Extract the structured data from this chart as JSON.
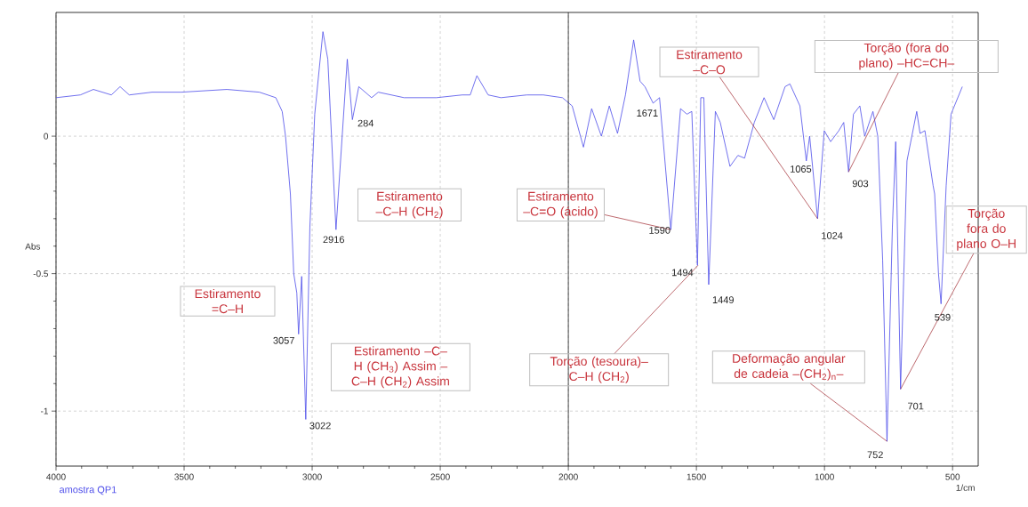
{
  "chart_data": {
    "type": "line",
    "xlabel": "1/cm",
    "ylabel": "Abs",
    "xlim": [
      4000,
      400
    ],
    "ylim": [
      -1.2,
      0.45
    ],
    "xticks": [
      4000,
      3500,
      3000,
      2500,
      2000,
      1500,
      1000,
      500
    ],
    "yticks": [
      0,
      -0.5,
      -1
    ],
    "grid": true,
    "ref_lines": [
      {
        "axis": "x",
        "value": 2000,
        "color": "#000000",
        "line_style": "solid"
      }
    ],
    "x": [
      4000,
      3905,
      3854,
      3784,
      3750,
      3714,
      3625,
      3511,
      3333,
      3206,
      3142,
      3117,
      3104,
      3085,
      3072,
      3060,
      3053,
      3041,
      3025,
      3009,
      2990,
      2958,
      2939,
      2907,
      2863,
      2843,
      2818,
      2768,
      2742,
      2641,
      2515,
      2414,
      2383,
      2357,
      2313,
      2263,
      2162,
      2098,
      2023,
      1985,
      1941,
      1909,
      1871,
      1840,
      1808,
      1777,
      1745,
      1720,
      1701,
      1669,
      1644,
      1600,
      1562,
      1537,
      1518,
      1496,
      1483,
      1471,
      1452,
      1426,
      1407,
      1369,
      1338,
      1312,
      1274,
      1236,
      1198,
      1154,
      1135,
      1096,
      1071,
      1058,
      1027,
      1001,
      976,
      944,
      925,
      906,
      887,
      862,
      843,
      811,
      792,
      773,
      756,
      735,
      722,
      703,
      678,
      640,
      627,
      608,
      576,
      570,
      555,
      545,
      525,
      506,
      462
    ],
    "series": [
      {
        "name": "amostra QP1",
        "color": "#4d4dea",
        "values": [
          0.14,
          0.15,
          0.17,
          0.15,
          0.18,
          0.15,
          0.16,
          0.16,
          0.17,
          0.16,
          0.14,
          0.09,
          0,
          -0.21,
          -0.5,
          -0.57,
          -0.72,
          -0.51,
          -1.03,
          -0.33,
          0.08,
          0.38,
          0.28,
          -0.34,
          0.28,
          0.06,
          0.18,
          0.14,
          0.16,
          0.14,
          0.14,
          0.15,
          0.15,
          0.22,
          0.15,
          0.14,
          0.15,
          0.15,
          0.14,
          0.11,
          -0.04,
          0.1,
          0,
          0.11,
          0.01,
          0.15,
          0.35,
          0.2,
          0.18,
          0.12,
          0.14,
          -0.34,
          0.1,
          0.08,
          0.09,
          -0.47,
          0.14,
          0.14,
          -0.54,
          0.09,
          0.05,
          -0.11,
          -0.07,
          -0.08,
          0.05,
          0.14,
          0.06,
          0.18,
          0.19,
          0.11,
          -0.09,
          0,
          -0.3,
          0.02,
          -0.02,
          0.02,
          0.05,
          -0.13,
          0.08,
          0.11,
          0,
          0.09,
          0,
          -0.45,
          -1.11,
          -0.33,
          -0.02,
          -0.92,
          -0.09,
          0.09,
          0.01,
          0.02,
          -0.18,
          -0.21,
          -0.5,
          -0.61,
          -0.18,
          0.08,
          0.18
        ]
      }
    ],
    "annotations": [
      {
        "text": "3057",
        "x": 3057,
        "y": -0.72
      },
      {
        "text": "3022",
        "x": 3022,
        "y": -1.03
      },
      {
        "text": "2916",
        "x": 2916,
        "y": -0.34
      },
      {
        "text": "284",
        "x": 2848,
        "y": 0.06
      },
      {
        "text": "1671",
        "x": 1671,
        "y": 0.12
      },
      {
        "text": "1590",
        "x": 1590,
        "y": -0.3
      },
      {
        "text": "1494",
        "x": 1494,
        "y": -0.47
      },
      {
        "text": "1449",
        "x": 1449,
        "y": -0.54
      },
      {
        "text": "1065",
        "x": 1065,
        "y": -0.09
      },
      {
        "text": "1024",
        "x": 1024,
        "y": -0.3
      },
      {
        "text": "903",
        "x": 903,
        "y": -0.13
      },
      {
        "text": "752",
        "x": 752,
        "y": -1.11
      },
      {
        "text": "701",
        "x": 701,
        "y": -0.92
      },
      {
        "text": "539",
        "x": 539,
        "y": -0.61
      },
      "Estiramento =C–H",
      "Estiramento –C–H (CH$_{2}$)",
      "Estiramento –C–H (CH$_{3}$) Assim –C–H (CH$_{2}$) Assim",
      {
        "text": "Estiramento –C=O (ácido)",
        "x": 1600,
        "y": -0.34
      },
      {
        "text": "Torção (tesoura)– C–H (CH$_{2}$)",
        "x": 1494,
        "y": -0.47
      },
      {
        "text": "Estiramento –C–O",
        "x": 1027,
        "y": -0.3
      },
      {
        "text": "Torção (fora do plano) –HC=CH–",
        "x": 906,
        "y": -0.13
      },
      {
        "text": "Deformação angular de cadeia –(CH$_{2}$)$_{n}$–",
        "x": 756,
        "y": -1.11
      },
      {
        "text": "Torção fora do plano O–H",
        "x": 703,
        "y": -0.92
      }
    ]
  }
}
